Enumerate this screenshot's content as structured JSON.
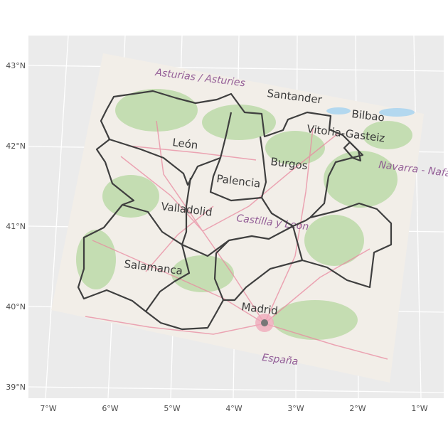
{
  "map": {
    "x_axis": {
      "ticks": [
        "7°W",
        "6°W",
        "5°W",
        "4°W",
        "3°W",
        "2°W",
        "1°W"
      ]
    },
    "y_axis": {
      "ticks": [
        "43°N",
        "42°N",
        "41°N",
        "40°N",
        "39°N"
      ]
    },
    "place_labels": [
      "Santander",
      "Bilbao",
      "Vitoria-Gasteiz",
      "León",
      "Burgos",
      "Palencia",
      "Valladolid",
      "Salamanca",
      "Madrid"
    ],
    "region_labels": [
      "Asturias / Asturies",
      "Navarra - Nafarroa",
      "Castilla y León",
      "España"
    ],
    "colors": {
      "panel_background": "#ebebeb",
      "grid": "#ffffff",
      "boundary": "#3f3f3f",
      "basemap": "#f2eee8",
      "road": "#e98aa0",
      "vegetation": "#b8d9a3",
      "region_label": "#8a4f8f"
    }
  }
}
